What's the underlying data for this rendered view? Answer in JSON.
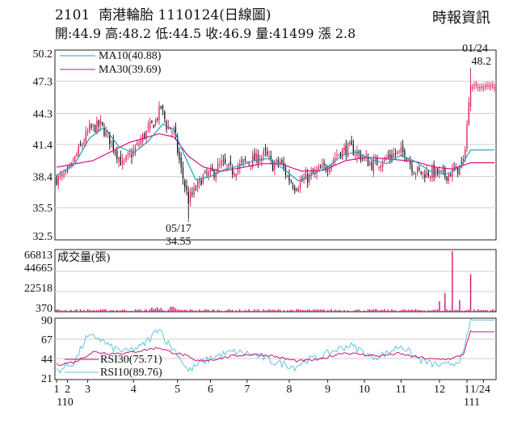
{
  "header": {
    "code": "2101",
    "name": "南港輪胎",
    "date_tag": "1110124(日線圖)",
    "quote": "開:44.9 高:48.2 低:44.5 收:46.9 量:41499 漲 2.8",
    "source": "時報資訊"
  },
  "colors": {
    "up": "#e0175d",
    "down": "#111111",
    "ma10": "#1aa3b7",
    "ma30": "#d4147a",
    "rsi30": "#d4147a",
    "rsi10": "#5ec7dc",
    "volume": "#d4147a"
  },
  "annotations": {
    "high_date": "01/24",
    "high_value": "48.2",
    "low_date": "05/17",
    "low_value": "34.55"
  },
  "chart_data": [
    {
      "type": "candlestick",
      "title": "2101 南港輪胎 1110124(日線圖)",
      "yticks": [
        "50.2",
        "47.3",
        "44.3",
        "41.4",
        "38.4",
        "35.5",
        "32.5"
      ],
      "ylim": [
        32.5,
        50.2
      ],
      "legend": [
        {
          "name": "MA10(40.88)"
        },
        {
          "name": "MA30(39.69)"
        }
      ],
      "series_points": {
        "close_approx": [
          [
            1,
            38.2
          ],
          [
            6,
            38.6
          ],
          [
            12,
            40.8
          ],
          [
            18,
            42.8
          ],
          [
            24,
            43.2
          ],
          [
            30,
            41.6
          ],
          [
            36,
            39.5
          ],
          [
            42,
            40.7
          ],
          [
            48,
            42.3
          ],
          [
            54,
            43.6
          ],
          [
            57,
            44.9
          ],
          [
            60,
            43.2
          ],
          [
            64,
            42.6
          ],
          [
            68,
            39.0
          ],
          [
            72,
            36.2
          ],
          [
            76,
            37.3
          ],
          [
            80,
            38.4
          ],
          [
            85,
            38.7
          ],
          [
            90,
            39.6
          ],
          [
            96,
            38.9
          ],
          [
            102,
            39.7
          ],
          [
            108,
            40.0
          ],
          [
            114,
            40.5
          ],
          [
            118,
            39.4
          ],
          [
            122,
            39.8
          ],
          [
            126,
            38.4
          ],
          [
            130,
            37.5
          ],
          [
            136,
            38.2
          ],
          [
            142,
            38.8
          ],
          [
            148,
            39.4
          ],
          [
            154,
            40.6
          ],
          [
            160,
            41.1
          ],
          [
            166,
            40.3
          ],
          [
            172,
            39.5
          ],
          [
            178,
            39.9
          ],
          [
            184,
            40.5
          ],
          [
            190,
            40.7
          ],
          [
            195,
            39.0
          ],
          [
            200,
            38.7
          ],
          [
            206,
            38.8
          ],
          [
            212,
            38.5
          ],
          [
            218,
            39.0
          ],
          [
            222,
            39.6
          ],
          [
            226,
            46.9
          ]
        ],
        "ma10_approx": [
          [
            1,
            38.6
          ],
          [
            10,
            39.6
          ],
          [
            18,
            42.0
          ],
          [
            26,
            43.0
          ],
          [
            34,
            41.2
          ],
          [
            42,
            40.6
          ],
          [
            50,
            41.7
          ],
          [
            58,
            43.3
          ],
          [
            64,
            42.8
          ],
          [
            70,
            40.3
          ],
          [
            76,
            38.1
          ],
          [
            84,
            38.4
          ],
          [
            92,
            39.1
          ],
          [
            100,
            39.4
          ],
          [
            108,
            39.9
          ],
          [
            116,
            40.1
          ],
          [
            124,
            39.1
          ],
          [
            132,
            38.0
          ],
          [
            140,
            38.6
          ],
          [
            148,
            39.3
          ],
          [
            156,
            40.4
          ],
          [
            164,
            40.7
          ],
          [
            172,
            40.0
          ],
          [
            180,
            39.6
          ],
          [
            188,
            40.4
          ],
          [
            196,
            39.8
          ],
          [
            204,
            38.9
          ],
          [
            212,
            38.6
          ],
          [
            220,
            39.2
          ],
          [
            226,
            40.88
          ]
        ],
        "ma30_approx": [
          [
            1,
            39.3
          ],
          [
            20,
            39.9
          ],
          [
            40,
            41.6
          ],
          [
            56,
            42.4
          ],
          [
            64,
            42.1
          ],
          [
            72,
            40.3
          ],
          [
            80,
            39.3
          ],
          [
            90,
            38.9
          ],
          [
            100,
            39.2
          ],
          [
            112,
            39.6
          ],
          [
            122,
            39.6
          ],
          [
            134,
            38.9
          ],
          [
            146,
            39.0
          ],
          [
            158,
            39.9
          ],
          [
            170,
            40.2
          ],
          [
            184,
            40.0
          ],
          [
            196,
            39.8
          ],
          [
            206,
            39.3
          ],
          [
            216,
            39.1
          ],
          [
            226,
            39.69
          ]
        ]
      }
    },
    {
      "type": "bar",
      "title": "成交量(張)",
      "yticks": [
        "66813",
        "44665",
        "22518",
        "370"
      ],
      "ylim": [
        370,
        66813
      ],
      "notable_values": [
        [
          192,
          2600
        ],
        [
          209,
          12000
        ],
        [
          212,
          21000
        ],
        [
          216,
          66813
        ],
        [
          220,
          13000
        ],
        [
          226,
          41499
        ]
      ]
    },
    {
      "type": "line",
      "yticks": [
        "90",
        "67",
        "44",
        "21"
      ],
      "ylim": [
        21,
        90
      ],
      "series": [
        {
          "name": "RSI30(75.71)",
          "points": [
            [
              1,
              37
            ],
            [
              10,
              40
            ],
            [
              20,
              52
            ],
            [
              30,
              50
            ],
            [
              40,
              51
            ],
            [
              50,
              55
            ],
            [
              56,
              57
            ],
            [
              62,
              52
            ],
            [
              70,
              48
            ],
            [
              76,
              41
            ],
            [
              86,
              43
            ],
            [
              96,
              47
            ],
            [
              106,
              49
            ],
            [
              116,
              48
            ],
            [
              124,
              44
            ],
            [
              132,
              41
            ],
            [
              144,
              43
            ],
            [
              156,
              51
            ],
            [
              166,
              49
            ],
            [
              176,
              47
            ],
            [
              186,
              50
            ],
            [
              196,
              46
            ],
            [
              206,
              43
            ],
            [
              216,
              44
            ],
            [
              222,
              49
            ],
            [
              226,
              75.71
            ]
          ]
        },
        {
          "name": "RSI10(89.76)",
          "points": [
            [
              1,
              30
            ],
            [
              10,
              40
            ],
            [
              16,
              68
            ],
            [
              22,
              70
            ],
            [
              30,
              57
            ],
            [
              38,
              52
            ],
            [
              46,
              58
            ],
            [
              52,
              70
            ],
            [
              56,
              82
            ],
            [
              60,
              64
            ],
            [
              66,
              50
            ],
            [
              72,
              29
            ],
            [
              78,
              38
            ],
            [
              86,
              46
            ],
            [
              96,
              52
            ],
            [
              104,
              50
            ],
            [
              112,
              46
            ],
            [
              118,
              40
            ],
            [
              124,
              38
            ],
            [
              130,
              34
            ],
            [
              136,
              42
            ],
            [
              144,
              46
            ],
            [
              152,
              54
            ],
            [
              160,
              60
            ],
            [
              166,
              54
            ],
            [
              172,
              45
            ],
            [
              180,
              50
            ],
            [
              188,
              60
            ],
            [
              196,
              45
            ],
            [
              204,
              38
            ],
            [
              212,
              35
            ],
            [
              218,
              40
            ],
            [
              222,
              48
            ],
            [
              226,
              89.76
            ]
          ]
        }
      ]
    }
  ],
  "xaxis": {
    "labels": [
      {
        "t": "1",
        "d": 0
      },
      {
        "t": "2",
        "d": 6
      },
      {
        "t": "3",
        "d": 17
      },
      {
        "t": "4",
        "d": 42
      },
      {
        "t": "5",
        "d": 66
      },
      {
        "t": "6",
        "d": 84
      },
      {
        "t": "7",
        "d": 104
      },
      {
        "t": "8",
        "d": 127
      },
      {
        "t": "9",
        "d": 148
      },
      {
        "t": "10",
        "d": 168
      },
      {
        "t": "11",
        "d": 188
      },
      {
        "t": "12",
        "d": 209
      },
      {
        "t": "1",
        "d": 224
      },
      {
        "t": "1/24",
        "d": 233
      }
    ],
    "years": [
      {
        "t": "110",
        "d": 2
      },
      {
        "t": "111",
        "d": 224
      }
    ]
  }
}
